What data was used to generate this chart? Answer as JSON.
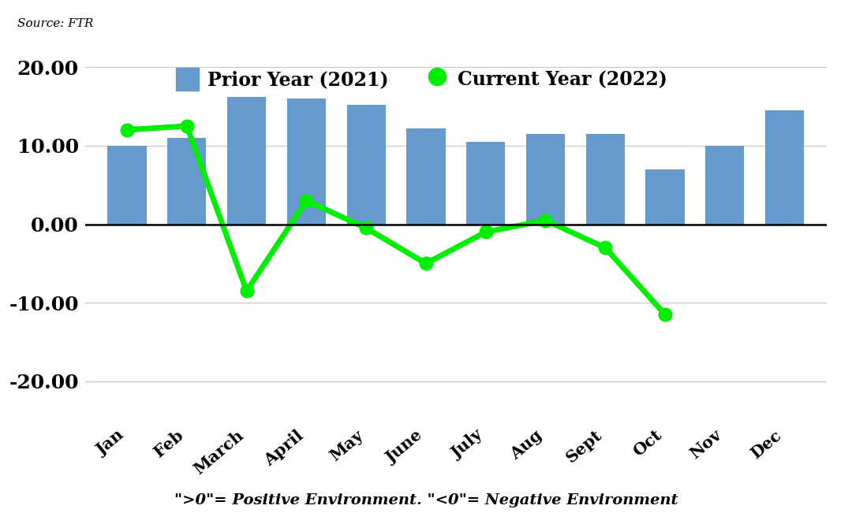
{
  "months": [
    "Jan",
    "Feb",
    "March",
    "April",
    "May",
    "June",
    "July",
    "Aug",
    "Sept",
    "Oct",
    "Nov",
    "Dec"
  ],
  "prior_year_2021": [
    10.0,
    11.0,
    16.2,
    16.0,
    15.2,
    12.2,
    10.5,
    11.5,
    11.5,
    7.0,
    10.0,
    14.5
  ],
  "current_year_2022": [
    12.0,
    12.5,
    -8.5,
    3.0,
    -0.5,
    -5.0,
    -1.0,
    0.5,
    -3.0,
    -11.5,
    null,
    null
  ],
  "bar_color": "#6699CC",
  "line_color": "#00EE00",
  "background_color": "#FFFFFF",
  "ylim": [
    -25,
    22
  ],
  "yticks": [
    -20,
    -10,
    0,
    10,
    20
  ],
  "ytick_labels": [
    "-20.00",
    "-10.00",
    "0.00",
    "10.00",
    "20.00"
  ],
  "source_text": "Source: FTR",
  "legend_bar_label": "Prior Year (2021)",
  "legend_line_label": "Current Year (2022)",
  "footnote": "\">0\"= Positive Environment. \"<0\"= Negative Environment"
}
